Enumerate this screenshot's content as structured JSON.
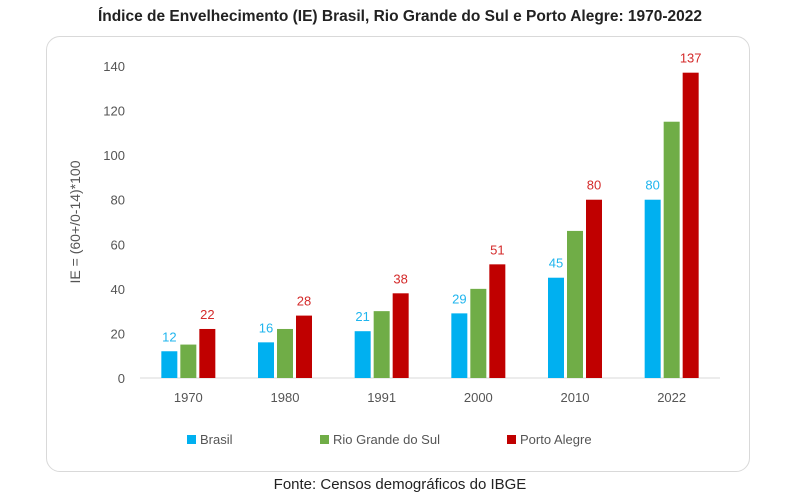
{
  "title": "Índice de Envelhecimento (IE) Brasil, Rio Grande do Sul e Porto Alegre: 1970-2022",
  "source": "Fonte: Censos  demográficos do IBGE",
  "chart_data": {
    "type": "bar",
    "title": "Índice de Envelhecimento (IE) Brasil, Rio Grande do Sul e Porto Alegre: 1970-2022",
    "xlabel": "",
    "ylabel": "IE = (60+/0-14)*100",
    "ylim": [
      0,
      140
    ],
    "yticks": [
      0,
      20,
      40,
      60,
      80,
      100,
      120,
      140
    ],
    "grid": false,
    "legend_position": "bottom",
    "categories": [
      "1970",
      "1980",
      "1991",
      "2000",
      "2010",
      "2022"
    ],
    "series": [
      {
        "name": "Brasil",
        "color": "#00b0f0",
        "values": [
          12,
          16,
          21,
          29,
          45,
          80
        ],
        "labeled": true,
        "label_color": "#1fb5ee"
      },
      {
        "name": "Rio Grande do Sul",
        "color": "#70ad47",
        "values": [
          15,
          22,
          30,
          40,
          66,
          115
        ],
        "labeled": false
      },
      {
        "name": "Porto Alegre",
        "color": "#c00000",
        "values": [
          22,
          28,
          38,
          51,
          80,
          137
        ],
        "labeled": true,
        "label_color": "#d42a2a"
      }
    ]
  }
}
